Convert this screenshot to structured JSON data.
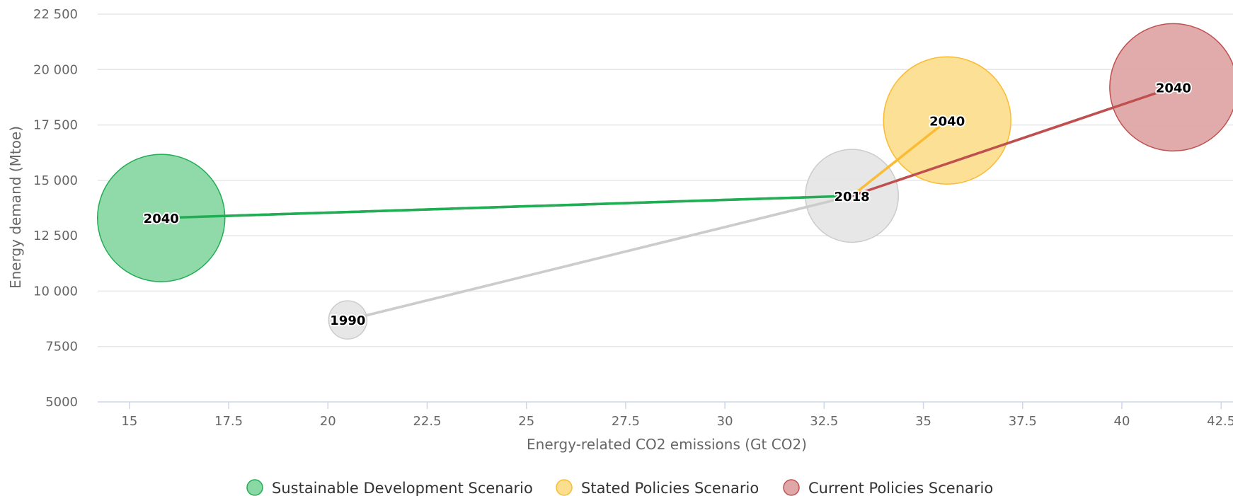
{
  "chart_data": {
    "type": "bubble",
    "xlabel": "Energy-related CO2 emissions (Gt CO2)",
    "ylabel": "Energy demand (Mtoe)",
    "xlim": [
      14.2,
      42.8
    ],
    "ylim": [
      5000,
      22500
    ],
    "x_ticks": [
      15,
      17.5,
      20,
      22.5,
      25,
      27.5,
      30,
      32.5,
      35,
      37.5,
      40,
      42.5
    ],
    "x_tick_labels": [
      "15",
      "17.5",
      "20",
      "22.5",
      "25",
      "27.5",
      "30",
      "32.5",
      "35",
      "37.5",
      "40",
      "42.5"
    ],
    "y_ticks": [
      5000,
      7500,
      10000,
      12500,
      15000,
      17500,
      20000,
      22500
    ],
    "y_tick_labels": [
      "5000",
      "7500",
      "10 000",
      "12 500",
      "15 000",
      "17 500",
      "20 000",
      "22 500"
    ],
    "grid": "horizontal",
    "legend_position": "bottom-center",
    "historical": {
      "color": "#cccccc",
      "fill": "#e6e6e6",
      "points": [
        {
          "x": 20.5,
          "y": 8700,
          "label": "1990",
          "size": 0.3
        },
        {
          "x": 33.2,
          "y": 14300,
          "label": "2018",
          "size": 0.73
        }
      ]
    },
    "series": [
      {
        "name": "Sustainable Development Scenario",
        "color": "#21ad54",
        "fill": "#8ad8a4",
        "points": [
          {
            "x": 33.2,
            "y": 14300,
            "label": "",
            "size": 0
          },
          {
            "x": 15.8,
            "y": 13300,
            "label": "2040",
            "size": 1.0
          }
        ]
      },
      {
        "name": "Stated Policies Scenario",
        "color": "#f9bc34",
        "fill": "#fcde8f",
        "points": [
          {
            "x": 33.2,
            "y": 14300,
            "label": "",
            "size": 0
          },
          {
            "x": 35.6,
            "y": 17700,
            "label": "2040",
            "size": 1.0
          }
        ]
      },
      {
        "name": "Current Policies Scenario",
        "color": "#c05050",
        "fill": "#dfa7a7",
        "points": [
          {
            "x": 33.2,
            "y": 14300,
            "label": "",
            "size": 0
          },
          {
            "x": 41.3,
            "y": 19200,
            "label": "2040",
            "size": 1.0
          }
        ]
      }
    ]
  }
}
